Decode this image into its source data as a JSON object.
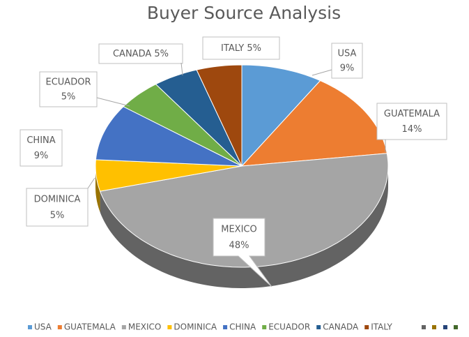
{
  "chart_data": {
    "type": "pie",
    "title": "Buyer Source Analysis",
    "categories": [
      "USA",
      "GUATEMALA",
      "MEXICO",
      "DOMINICA",
      "CHINA",
      "ECUADOR",
      "CANADA",
      "ITALY"
    ],
    "values": [
      9,
      14,
      48,
      5,
      9,
      5,
      5,
      5
    ],
    "value_labels": [
      "9%",
      "14%",
      "48%",
      "5%",
      "9%",
      "5%",
      "5%",
      "5%"
    ],
    "colors": [
      "#5b9bd5",
      "#ed7d31",
      "#a5a5a5",
      "#ffc000",
      "#4472c4",
      "#70ad47",
      "#255e91",
      "#9e480e"
    ],
    "legend": "bottom"
  }
}
